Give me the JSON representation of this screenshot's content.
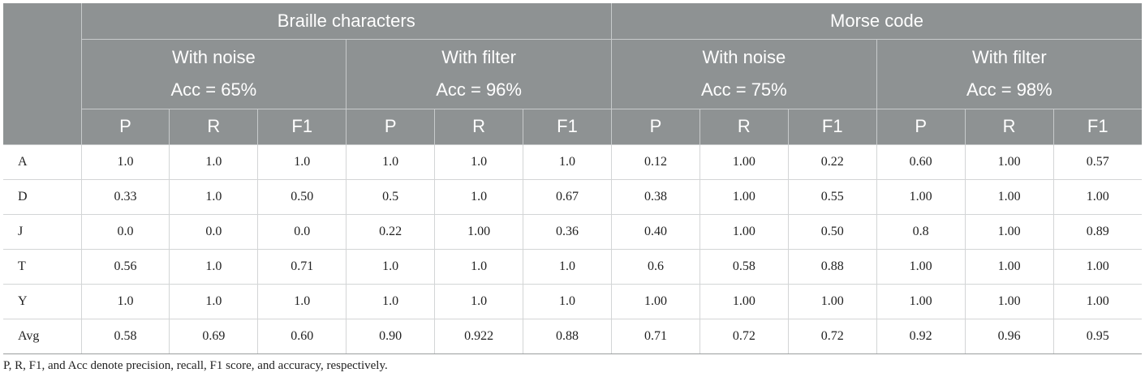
{
  "header": {
    "groups": [
      "Braille characters",
      "Morse code"
    ],
    "subgroups": [
      {
        "title": "With noise",
        "acc": "Acc = 65%"
      },
      {
        "title": "With filter",
        "acc": "Acc = 96%"
      },
      {
        "title": "With noise",
        "acc": "Acc = 75%"
      },
      {
        "title": "With filter",
        "acc": "Acc = 98%"
      }
    ],
    "metrics": [
      "P",
      "R",
      "F1",
      "P",
      "R",
      "F1",
      "P",
      "R",
      "F1",
      "P",
      "R",
      "F1"
    ]
  },
  "rows": [
    {
      "label": "A",
      "values": [
        "1.0",
        "1.0",
        "1.0",
        "1.0",
        "1.0",
        "1.0",
        "0.12",
        "1.00",
        "0.22",
        "0.60",
        "1.00",
        "0.57"
      ]
    },
    {
      "label": "D",
      "values": [
        "0.33",
        "1.0",
        "0.50",
        "0.5",
        "1.0",
        "0.67",
        "0.38",
        "1.00",
        "0.55",
        "1.00",
        "1.00",
        "1.00"
      ]
    },
    {
      "label": "J",
      "values": [
        "0.0",
        "0.0",
        "0.0",
        "0.22",
        "1.00",
        "0.36",
        "0.40",
        "1.00",
        "0.50",
        "0.8",
        "1.00",
        "0.89"
      ]
    },
    {
      "label": "T",
      "values": [
        "0.56",
        "1.0",
        "0.71",
        "1.0",
        "1.0",
        "1.0",
        "0.6",
        "0.58",
        "0.88",
        "1.00",
        "1.00",
        "1.00"
      ]
    },
    {
      "label": "Y",
      "values": [
        "1.0",
        "1.0",
        "1.0",
        "1.0",
        "1.0",
        "1.0",
        "1.00",
        "1.00",
        "1.00",
        "1.00",
        "1.00",
        "1.00"
      ]
    },
    {
      "label": "Avg",
      "values": [
        "0.58",
        "0.69",
        "0.60",
        "0.90",
        "0.922",
        "0.88",
        "0.71",
        "0.72",
        "0.72",
        "0.92",
        "0.96",
        "0.95"
      ]
    }
  ],
  "footnote": "P, R, F1, and Acc denote precision, recall, F1 score, and accuracy, respectively.",
  "colors": {
    "header_bg": "#8e9293",
    "header_text": "#ffffff",
    "grid": "#d3d5d6"
  }
}
